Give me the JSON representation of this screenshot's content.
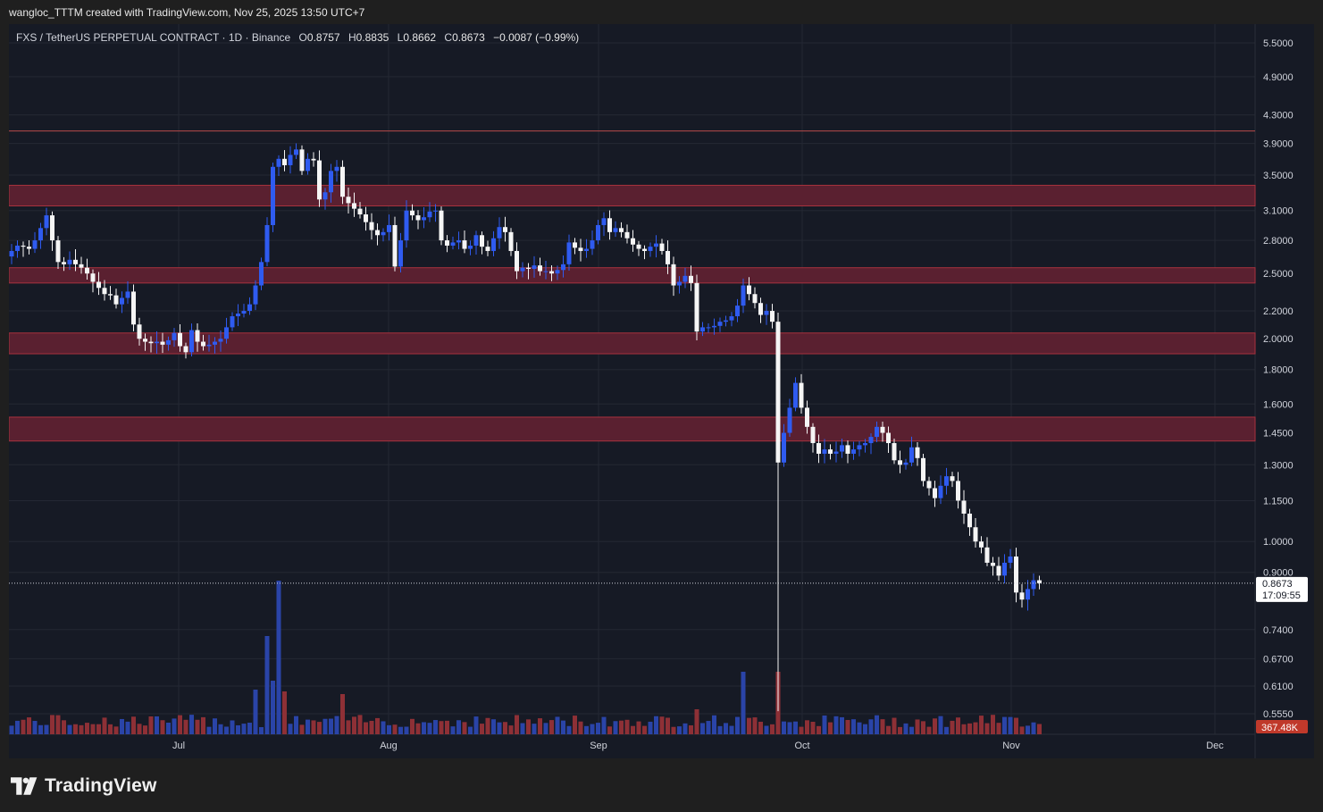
{
  "header": {
    "attribution": "wangloc_TTTM created with TradingView.com, Nov 25, 2025 13:50 UTC+7"
  },
  "legend": {
    "symbol": "FXS / TetherUS PERPETUAL CONTRACT · 1D · Binance",
    "open_label": "O",
    "open": "0.8757",
    "high_label": "H",
    "high": "0.8835",
    "low_label": "L",
    "low": "0.8662",
    "close_label": "C",
    "close": "0.8673",
    "change": "−0.0087 (−0.99%)"
  },
  "price_tag": {
    "price": "0.8673",
    "countdown": "17:09:55"
  },
  "volume_tag": "367.48K",
  "footer": {
    "brand": "TradingView"
  },
  "colors": {
    "background": "#161a25",
    "grid": "#242833",
    "bull_candle": "#2f5bf0",
    "bear_candle": "#f5f5f5",
    "bull_volume": "#2a44a8",
    "bear_volume": "#8e3036",
    "zone_fill": "#5a2030",
    "zone_border": "#a8323e",
    "resistance_line": "#b84a4a"
  },
  "chart_data": {
    "type": "candlestick",
    "scale": "log",
    "y_ticks": [
      "5.5000",
      "4.9000",
      "4.3000",
      "3.9000",
      "3.5000",
      "3.1000",
      "2.8000",
      "2.5000",
      "2.2000",
      "2.0000",
      "1.8000",
      "1.6000",
      "1.4500",
      "1.3000",
      "1.1500",
      "1.0000",
      "0.9000",
      "0.7400",
      "0.6700",
      "0.6100",
      "0.5550"
    ],
    "x_ticks": [
      "Jul",
      "Aug",
      "Sep",
      "Oct",
      "Nov",
      "Dec"
    ],
    "horizontal_line": 4.07,
    "zones": [
      [
        3.15,
        3.38
      ],
      [
        2.42,
        2.55
      ],
      [
        1.9,
        2.04
      ],
      [
        1.41,
        1.53
      ]
    ],
    "last_price": 0.8673,
    "closes": [
      2.7,
      2.75,
      2.74,
      2.72,
      2.8,
      2.92,
      3.05,
      2.8,
      2.6,
      2.58,
      2.62,
      2.58,
      2.55,
      2.5,
      2.43,
      2.38,
      2.33,
      2.32,
      2.25,
      2.3,
      2.35,
      2.1,
      2.0,
      1.98,
      1.97,
      1.98,
      1.96,
      1.99,
      2.04,
      1.95,
      1.91,
      2.06,
      1.98,
      1.95,
      1.96,
      1.98,
      2.0,
      2.08,
      2.16,
      2.18,
      2.2,
      2.25,
      2.4,
      2.6,
      2.95,
      3.6,
      3.7,
      3.62,
      3.75,
      3.82,
      3.55,
      3.7,
      3.68,
      3.22,
      3.3,
      3.55,
      3.6,
      3.25,
      3.18,
      3.12,
      3.06,
      2.98,
      2.9,
      2.85,
      2.88,
      2.95,
      2.56,
      2.8,
      3.1,
      3.05,
      3.0,
      3.03,
      3.09,
      3.1,
      2.8,
      2.75,
      2.78,
      2.8,
      2.72,
      2.75,
      2.85,
      2.74,
      2.7,
      2.82,
      2.93,
      2.88,
      2.7,
      2.52,
      2.55,
      2.54,
      2.57,
      2.52,
      2.52,
      2.5,
      2.53,
      2.58,
      2.78,
      2.73,
      2.7,
      2.72,
      2.8,
      2.95,
      3.02,
      2.88,
      2.92,
      2.88,
      2.82,
      2.76,
      2.72,
      2.7,
      2.74,
      2.77,
      2.7,
      2.58,
      2.4,
      2.43,
      2.48,
      2.42,
      2.05,
      2.08,
      2.08,
      2.09,
      2.12,
      2.13,
      2.16,
      2.24,
      2.4,
      2.33,
      2.26,
      2.17,
      2.2,
      2.12,
      1.31,
      1.45,
      1.58,
      1.72,
      1.58,
      1.48,
      1.4,
      1.35,
      1.37,
      1.35,
      1.36,
      1.39,
      1.35,
      1.37,
      1.39,
      1.4,
      1.43,
      1.48,
      1.45,
      1.4,
      1.32,
      1.3,
      1.31,
      1.38,
      1.33,
      1.23,
      1.2,
      1.16,
      1.21,
      1.25,
      1.23,
      1.15,
      1.1,
      1.05,
      1.0,
      0.98,
      0.93,
      0.92,
      0.89,
      0.93,
      0.95,
      0.84,
      0.82,
      0.85,
      0.876,
      0.8673
    ]
  }
}
